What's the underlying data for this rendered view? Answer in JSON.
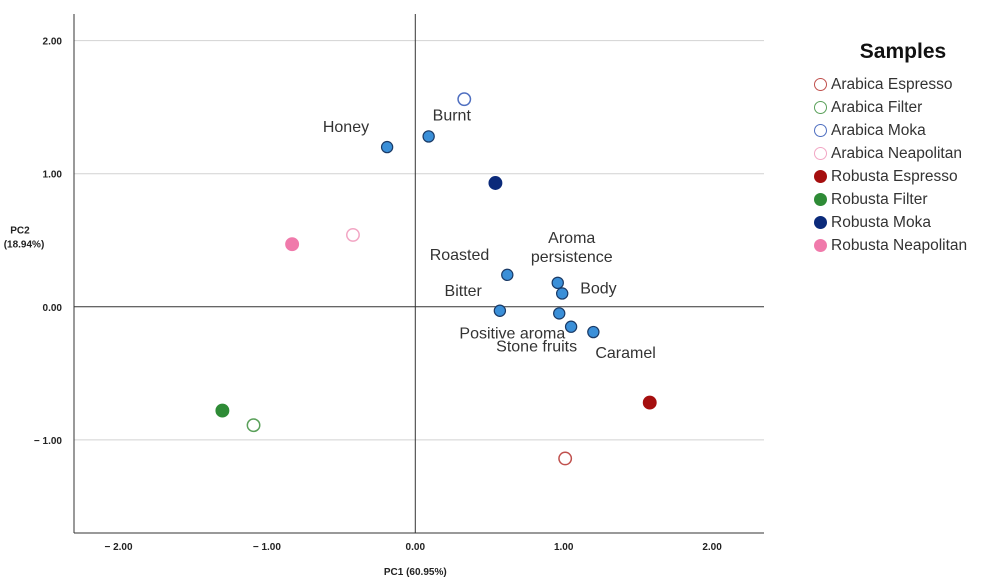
{
  "chart_data": {
    "type": "scatter",
    "xlabel": "PC1 (60.95%)",
    "ylabel_line1": "PC2",
    "ylabel_line2": "(18.94%)",
    "xlim": [
      -2.3,
      2.35
    ],
    "ylim": [
      -1.7,
      2.2
    ],
    "x_ticks": [
      {
        "value": -2.0,
        "label": "− 2.00"
      },
      {
        "value": -1.0,
        "label": "− 1.00"
      },
      {
        "value": 0.0,
        "label": "0.00"
      },
      {
        "value": 1.0,
        "label": "1.00"
      },
      {
        "value": 2.0,
        "label": "2.00"
      }
    ],
    "y_ticks": [
      {
        "value": 2.0,
        "label": "2.00"
      },
      {
        "value": 1.0,
        "label": "1.00"
      },
      {
        "value": 0.0,
        "label": "0.00"
      },
      {
        "value": -1.0,
        "label": "− 1.00"
      }
    ],
    "grid": "horizontal",
    "legend_placement": "right",
    "attribute_color": "#3a8fd8",
    "attributes": [
      {
        "name": "Honey",
        "x": -0.19,
        "y": 1.2,
        "label": "Honey",
        "label_pos": "upper-left"
      },
      {
        "name": "Burnt",
        "x": 0.09,
        "y": 1.28,
        "label": "Burnt",
        "label_pos": "upper-right"
      },
      {
        "name": "Roasted",
        "x": 0.62,
        "y": 0.24,
        "label": "Roasted",
        "label_pos": "upper-left"
      },
      {
        "name": "Aroma persistence",
        "x": 0.96,
        "y": 0.18,
        "label": "Aroma\npersistence",
        "label_pos": "above"
      },
      {
        "name": "Body",
        "x": 0.99,
        "y": 0.1,
        "label": "Body",
        "label_pos": "right"
      },
      {
        "name": "Bitter",
        "x": 0.57,
        "y": -0.03,
        "label": "Bitter",
        "label_pos": "upper-left"
      },
      {
        "name": "Positive aroma",
        "x": 0.97,
        "y": -0.05,
        "label": "Positive aroma",
        "label_pos": "below-left"
      },
      {
        "name": "Stone fruits",
        "x": 1.05,
        "y": -0.15,
        "label": "Stone fruits",
        "label_pos": "below-left"
      },
      {
        "name": "Caramel",
        "x": 1.2,
        "y": -0.19,
        "label": "Caramel",
        "label_pos": "below-right"
      }
    ],
    "series": [
      {
        "name": "Arabica Espresso",
        "color": "#c0504d",
        "filled": false,
        "x": 1.01,
        "y": -1.14
      },
      {
        "name": "Arabica Filter",
        "color": "#5aa05a",
        "filled": false,
        "x": -1.09,
        "y": -0.89
      },
      {
        "name": "Arabica Moka",
        "color": "#4f6fc0",
        "filled": false,
        "x": 0.33,
        "y": 1.56
      },
      {
        "name": "Arabica Neapolitan",
        "color": "#f2a6c4",
        "filled": false,
        "x": -0.42,
        "y": 0.54
      },
      {
        "name": "Robusta Espresso",
        "color": "#a50f0f",
        "filled": true,
        "x": 1.58,
        "y": -0.72
      },
      {
        "name": "Robusta Filter",
        "color": "#2e8b36",
        "filled": true,
        "x": -1.3,
        "y": -0.78
      },
      {
        "name": "Robusta Moka",
        "color": "#0b2a7a",
        "filled": true,
        "x": 0.54,
        "y": 0.93
      },
      {
        "name": "Robusta Neapolitan",
        "color": "#f07aab",
        "filled": true,
        "x": -0.83,
        "y": 0.47
      }
    ]
  },
  "legend": {
    "title": "Samples",
    "items": [
      {
        "label": "Arabica Espresso",
        "color": "#c0504d",
        "filled": false
      },
      {
        "label": "Arabica Filter",
        "color": "#5aa05a",
        "filled": false
      },
      {
        "label": "Arabica Moka",
        "color": "#4f6fc0",
        "filled": false
      },
      {
        "label": "Arabica Neapolitan",
        "color": "#f2a6c4",
        "filled": false
      },
      {
        "label": "Robusta Espresso",
        "color": "#a50f0f",
        "filled": true
      },
      {
        "label": "Robusta Filter",
        "color": "#2e8b36",
        "filled": true
      },
      {
        "label": "Robusta Moka",
        "color": "#0b2a7a",
        "filled": true
      },
      {
        "label": "Robusta Neapolitan",
        "color": "#f07aab",
        "filled": true
      }
    ]
  }
}
